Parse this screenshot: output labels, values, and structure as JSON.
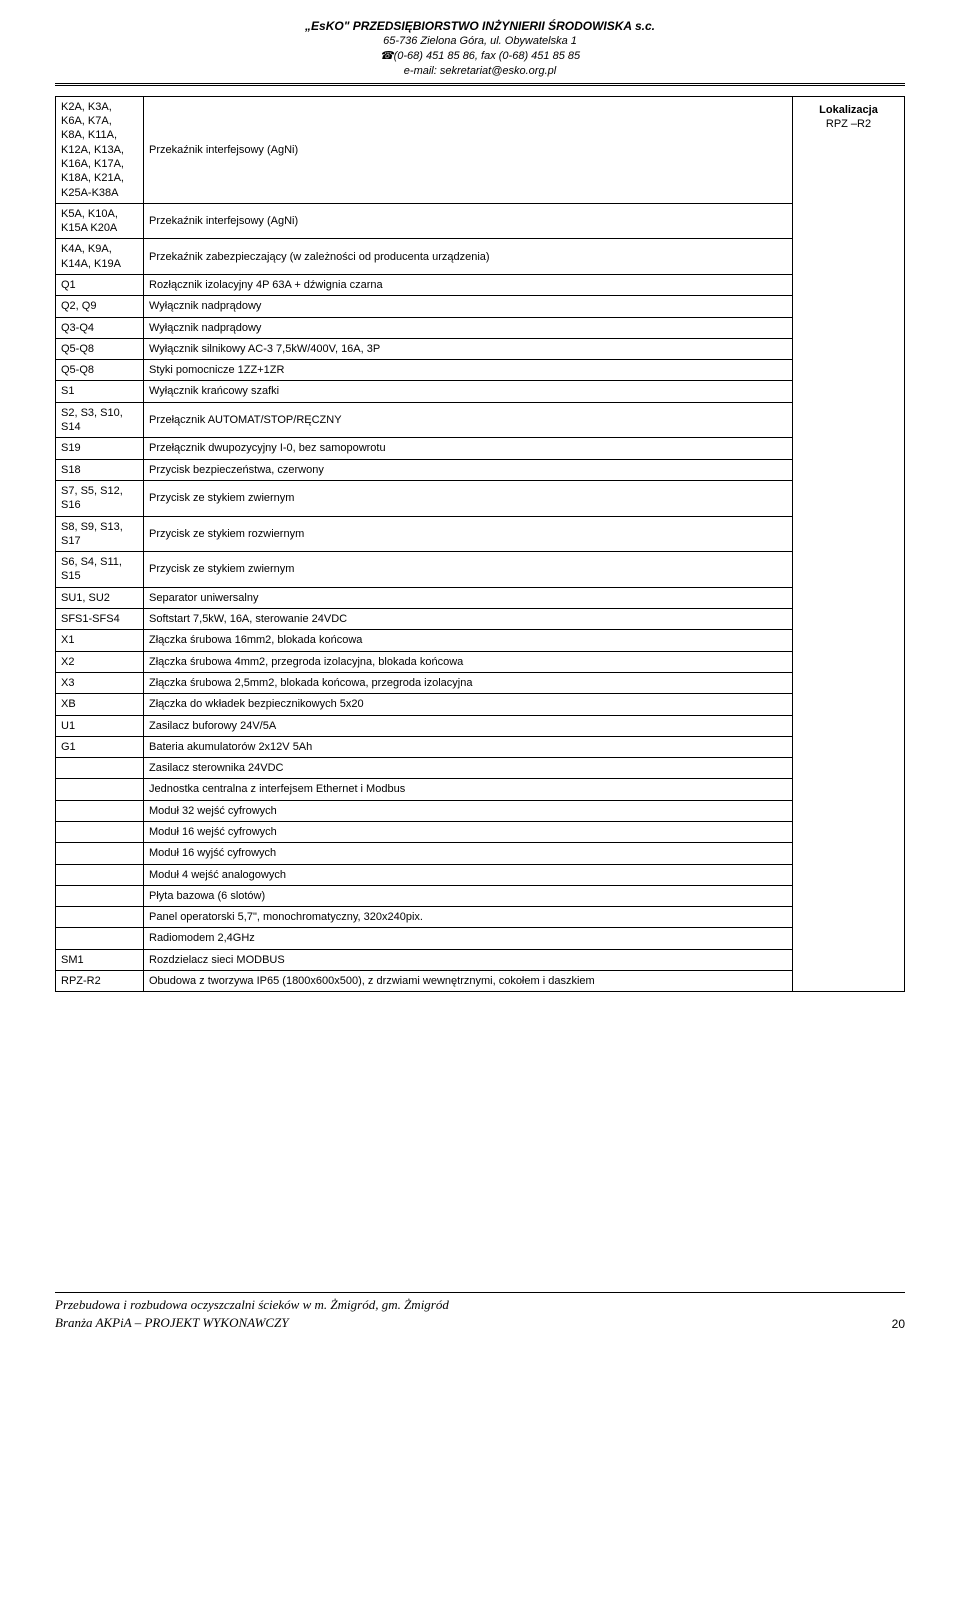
{
  "header": {
    "company": "„EsKO\" PRZEDSIĘBIORSTWO INŻYNIERII ŚRODOWISKA s.c.",
    "address": "65-736 Zielona Góra, ul. Obywatelska 1",
    "phone": "☎(0-68) 451 85 86, fax (0-68) 451 85 85",
    "email": "e-mail: sekretariat@esko.org.pl"
  },
  "localization": {
    "title": "Lokalizacja",
    "code": "RPZ –R2"
  },
  "table": {
    "rows": [
      {
        "c1": "K2A, K3A, K6A,  K7A, K8A, K11A, K12A, K13A, K16A, K17A, K18A, K21A, K25A-K38A",
        "c2": "Przekaźnik interfejsowy (AgNi)"
      },
      {
        "c1": "K5A, K10A, K15A K20A",
        "c2": "Przekaźnik interfejsowy (AgNi)"
      },
      {
        "c1": "K4A, K9A, K14A, K19A",
        "c2": "Przekaźnik zabezpieczający (w zależności od producenta urządzenia)"
      },
      {
        "c1": "Q1",
        "c2": "Rozłącznik izolacyjny 4P 63A + dźwignia czarna"
      },
      {
        "c1": "Q2, Q9",
        "c2": "Wyłącznik nadprądowy"
      },
      {
        "c1": "Q3-Q4",
        "c2": "Wyłącznik nadprądowy"
      },
      {
        "c1": "Q5-Q8",
        "c2": "Wyłącznik silnikowy AC-3 7,5kW/400V, 16A, 3P"
      },
      {
        "c1": "Q5-Q8",
        "c2": "Styki pomocnicze 1ZZ+1ZR"
      },
      {
        "c1": "S1",
        "c2": "Wyłącznik krańcowy szafki"
      },
      {
        "c1": "S2, S3, S10, S14",
        "c2": "Przełącznik AUTOMAT/STOP/RĘCZNY"
      },
      {
        "c1": "S19",
        "c2": "Przełącznik dwupozycyjny I-0, bez samopowrotu"
      },
      {
        "c1": "S18",
        "c2": "Przycisk bezpieczeństwa, czerwony"
      },
      {
        "c1": "S7, S5, S12, S16",
        "c2": "Przycisk ze stykiem zwiernym"
      },
      {
        "c1": "S8, S9, S13, S17",
        "c2": "Przycisk ze stykiem rozwiernym"
      },
      {
        "c1": "S6, S4, S11, S15",
        "c2": "Przycisk ze stykiem zwiernym"
      },
      {
        "c1": "SU1, SU2",
        "c2": "Separator uniwersalny"
      },
      {
        "c1": "SFS1-SFS4",
        "c2": "Softstart 7,5kW, 16A, sterowanie 24VDC"
      },
      {
        "c1": "X1",
        "c2": "Złączka śrubowa 16mm2, blokada końcowa"
      },
      {
        "c1": "X2",
        "c2": "Złączka śrubowa 4mm2, przegroda izolacyjna, blokada końcowa"
      },
      {
        "c1": "X3",
        "c2": "Złączka śrubowa 2,5mm2, blokada końcowa, przegroda izolacyjna"
      },
      {
        "c1": "XB",
        "c2": "Złączka do wkładek bezpiecznikowych 5x20"
      },
      {
        "c1": "U1",
        "c2": "Zasilacz buforowy 24V/5A"
      },
      {
        "c1": "G1",
        "c2": "Bateria akumulatorów 2x12V 5Ah"
      },
      {
        "c1": "",
        "c2": "Zasilacz sterownika 24VDC"
      },
      {
        "c1": "",
        "c2": "Jednostka centralna z interfejsem Ethernet i Modbus"
      },
      {
        "c1": "",
        "c2": "Moduł 32 wejść cyfrowych"
      },
      {
        "c1": "",
        "c2": "Moduł 16 wejść cyfrowych"
      },
      {
        "c1": "",
        "c2": "Moduł 16 wyjść cyfrowych"
      },
      {
        "c1": "",
        "c2": "Moduł 4 wejść analogowych"
      },
      {
        "c1": "",
        "c2": "Płyta bazowa (6 slotów)"
      },
      {
        "c1": "",
        "c2": "Panel operatorski  5,7\", monochromatyczny, 320x240pix."
      },
      {
        "c1": "",
        "c2": "Radiomodem 2,4GHz"
      },
      {
        "c1": "SM1",
        "c2": "Rozdzielacz sieci MODBUS"
      },
      {
        "c1": "RPZ-R2",
        "c2": "Obudowa z tworzywa IP65 (1800x600x500), z drzwiami wewnętrznymi, cokołem i daszkiem"
      }
    ]
  },
  "footer": {
    "line1": "Przebudowa i rozbudowa oczyszczalni ścieków w m. Żmigród, gm. Żmigród",
    "line2": "Branża AKPiA – PROJEKT WYKONAWCZY",
    "page": "20"
  }
}
